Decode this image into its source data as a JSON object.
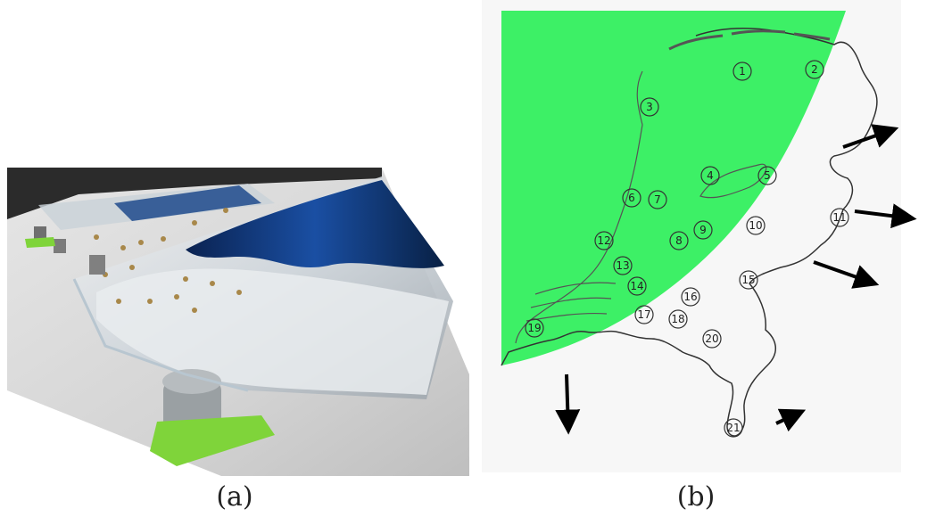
{
  "captions": {
    "a": "(a)",
    "b": "(b)"
  },
  "colors": {
    "sea": "#3DF066",
    "land": "#ffffff",
    "outline": "#333333",
    "arrow": "#000000",
    "water_dark": "#0b2a5e",
    "water_blue": "#1d64c8",
    "table": "#d9d9d9",
    "green_base": "#7fd43a"
  },
  "map_labels": [
    "1",
    "2",
    "3",
    "4",
    "5",
    "6",
    "7",
    "8",
    "9",
    "10",
    "11",
    "12",
    "13",
    "14",
    "15",
    "16",
    "17",
    "18",
    "19",
    "20",
    "21"
  ],
  "arrows_count": 5,
  "photo": {
    "description_icon": "water-tank-model-photo"
  }
}
